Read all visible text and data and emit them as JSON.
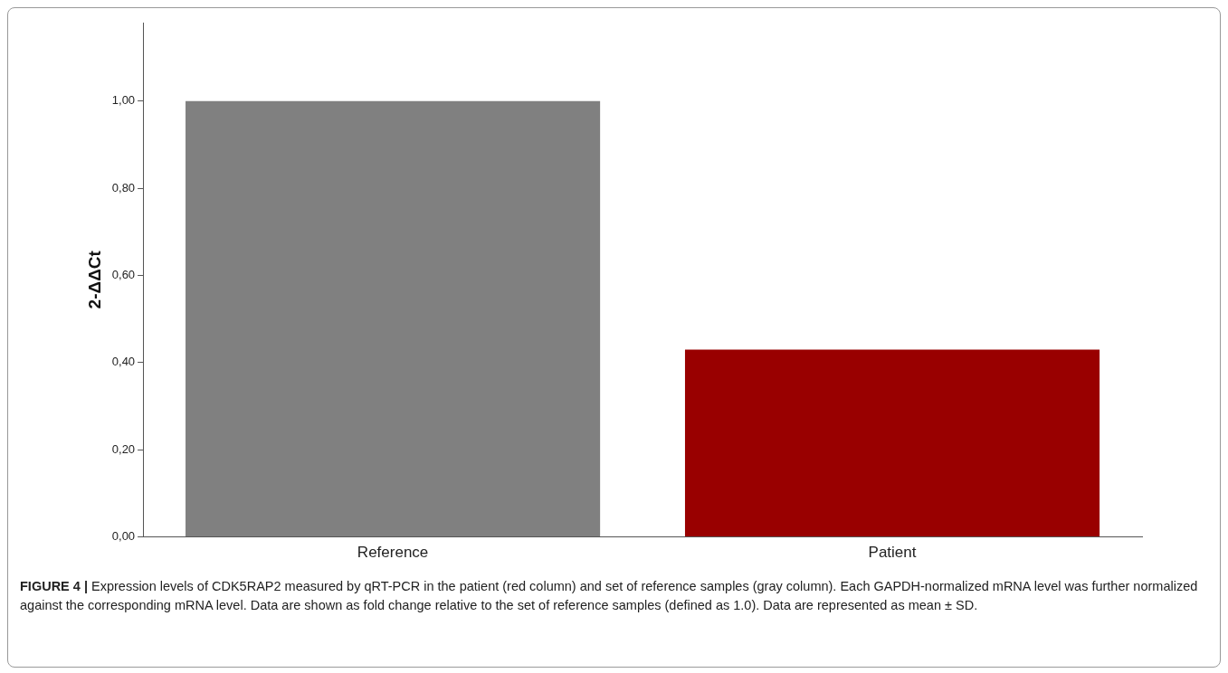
{
  "chart_data": {
    "type": "bar",
    "ylabel": "2-ΔΔCt",
    "categories": [
      "Reference",
      "Patient"
    ],
    "values": [
      1.0,
      0.43
    ],
    "colors": [
      "#808080",
      "#990000"
    ],
    "ylim": [
      0,
      1.18
    ],
    "yticks": [
      {
        "value": 0,
        "label": "0,00"
      },
      {
        "value": 0.2,
        "label": "0,20"
      },
      {
        "value": 0.4,
        "label": "0,40"
      },
      {
        "value": 0.6,
        "label": "0,60"
      },
      {
        "value": 0.8,
        "label": "0,80"
      },
      {
        "value": 1.0,
        "label": "1,00"
      }
    ],
    "grid": false,
    "legend": false,
    "annotations": [
      "FIGURE 4 | Expression levels of CDK5RAP2 measured by qRT-PCR in the patient (red column) and set of reference samples (gray column). Each GAPDH-normalized mRNA level was further normalized against the corresponding mRNA level. Data are shown as fold change relative to the set of reference samples (defined as 1.0). Data are represented as mean ± SD."
    ]
  }
}
